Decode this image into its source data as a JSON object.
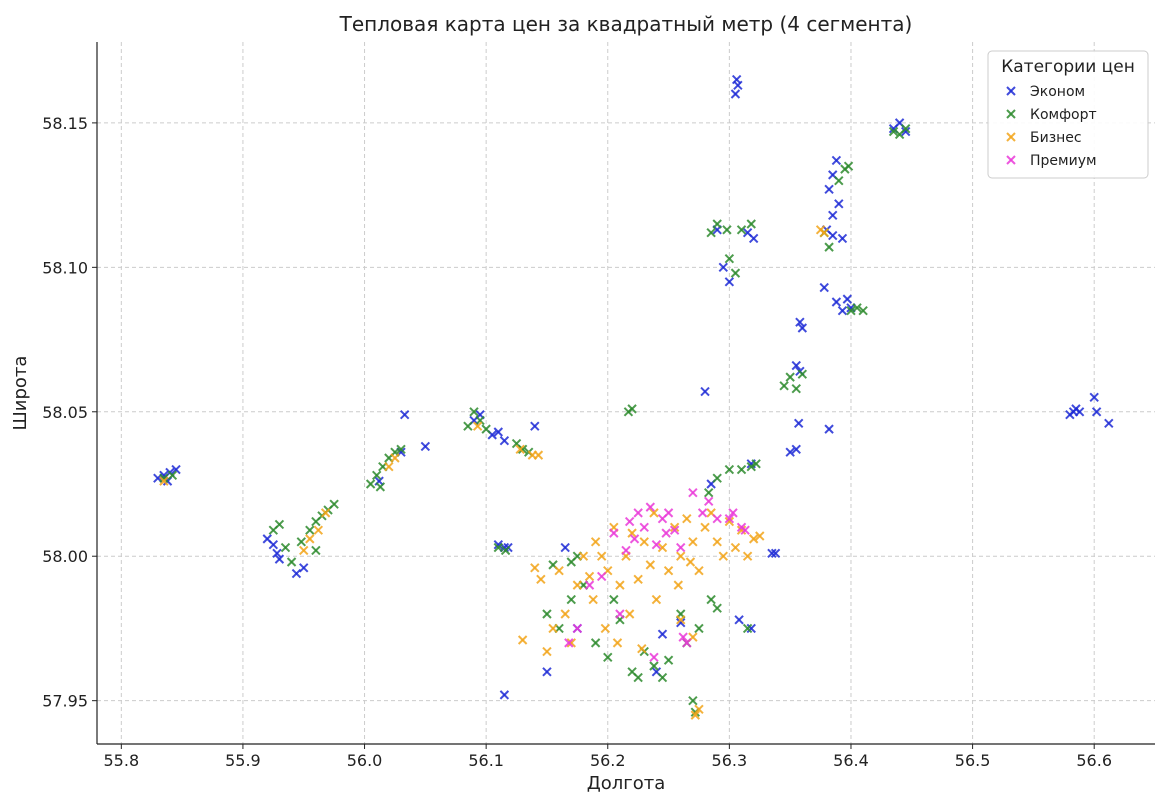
{
  "chart_data": {
    "type": "scatter",
    "title": "Тепловая карта цен за квадратный метр (4 сегмента)",
    "xlabel": "Долгота",
    "ylabel": "Широта",
    "xlim": [
      55.78,
      56.65
    ],
    "ylim": [
      57.935,
      58.178
    ],
    "xticks": [
      "55.8",
      "55.9",
      "56.0",
      "56.1",
      "56.2",
      "56.3",
      "56.4",
      "56.5",
      "56.6"
    ],
    "yticks": [
      "57.95",
      "58.00",
      "58.05",
      "58.10",
      "58.15"
    ],
    "grid": true,
    "marker": "x",
    "legend": {
      "title": "Категории цен",
      "position": "top-right"
    },
    "series": [
      {
        "name": "Эконом",
        "color": "#1f2bd6",
        "points": [
          [
            55.83,
            58.027
          ],
          [
            55.835,
            58.028
          ],
          [
            55.84,
            58.029
          ],
          [
            55.845,
            58.03
          ],
          [
            55.838,
            58.026
          ],
          [
            55.92,
            58.006
          ],
          [
            55.925,
            58.004
          ],
          [
            55.928,
            58.001
          ],
          [
            55.93,
            57.999
          ],
          [
            55.944,
            57.994
          ],
          [
            55.95,
            57.996
          ],
          [
            56.012,
            58.026
          ],
          [
            56.03,
            58.036
          ],
          [
            56.033,
            58.049
          ],
          [
            56.05,
            58.038
          ],
          [
            56.09,
            58.047
          ],
          [
            56.095,
            58.049
          ],
          [
            56.105,
            58.042
          ],
          [
            56.11,
            58.043
          ],
          [
            56.115,
            58.04
          ],
          [
            56.14,
            58.045
          ],
          [
            56.11,
            58.004
          ],
          [
            56.115,
            58.003
          ],
          [
            56.118,
            58.003
          ],
          [
            56.115,
            57.952
          ],
          [
            56.15,
            57.96
          ],
          [
            56.165,
            58.003
          ],
          [
            56.175,
            57.975
          ],
          [
            56.24,
            57.96
          ],
          [
            56.245,
            57.973
          ],
          [
            56.26,
            57.977
          ],
          [
            56.28,
            58.057
          ],
          [
            56.285,
            58.025
          ],
          [
            56.305,
            58.16
          ],
          [
            56.307,
            58.163
          ],
          [
            56.306,
            58.165
          ],
          [
            56.29,
            58.113
          ],
          [
            56.295,
            58.1
          ],
          [
            56.3,
            58.095
          ],
          [
            56.315,
            58.112
          ],
          [
            56.32,
            58.11
          ],
          [
            56.318,
            58.032
          ],
          [
            56.308,
            57.978
          ],
          [
            56.318,
            57.975
          ],
          [
            56.335,
            58.001
          ],
          [
            56.338,
            58.001
          ],
          [
            56.35,
            58.036
          ],
          [
            56.355,
            58.037
          ],
          [
            56.357,
            58.046
          ],
          [
            56.355,
            58.066
          ],
          [
            56.358,
            58.064
          ],
          [
            56.358,
            58.081
          ],
          [
            56.36,
            58.079
          ],
          [
            56.378,
            58.093
          ],
          [
            56.382,
            58.044
          ],
          [
            56.38,
            58.113
          ],
          [
            56.385,
            58.111
          ],
          [
            56.382,
            58.127
          ],
          [
            56.385,
            58.132
          ],
          [
            56.388,
            58.137
          ],
          [
            56.39,
            58.122
          ],
          [
            56.385,
            58.118
          ],
          [
            56.393,
            58.11
          ],
          [
            56.388,
            58.088
          ],
          [
            56.393,
            58.085
          ],
          [
            56.397,
            58.089
          ],
          [
            56.4,
            58.086
          ],
          [
            56.435,
            58.148
          ],
          [
            56.44,
            58.15
          ],
          [
            56.445,
            58.147
          ],
          [
            56.58,
            58.049
          ],
          [
            56.583,
            58.05
          ],
          [
            56.585,
            58.051
          ],
          [
            56.588,
            58.05
          ],
          [
            56.6,
            58.055
          ],
          [
            56.602,
            58.05
          ],
          [
            56.612,
            58.046
          ]
        ]
      },
      {
        "name": "Комфорт",
        "color": "#2e8b2e",
        "points": [
          [
            55.835,
            58.027
          ],
          [
            55.842,
            58.028
          ],
          [
            55.925,
            58.009
          ],
          [
            55.93,
            58.011
          ],
          [
            55.935,
            58.003
          ],
          [
            55.94,
            57.998
          ],
          [
            55.948,
            58.005
          ],
          [
            55.955,
            58.009
          ],
          [
            55.96,
            58.012
          ],
          [
            55.965,
            58.014
          ],
          [
            55.97,
            58.016
          ],
          [
            55.975,
            58.018
          ],
          [
            55.96,
            58.002
          ],
          [
            56.005,
            58.025
          ],
          [
            56.01,
            58.028
          ],
          [
            56.015,
            58.031
          ],
          [
            56.02,
            58.034
          ],
          [
            56.025,
            58.036
          ],
          [
            56.03,
            58.037
          ],
          [
            56.013,
            58.024
          ],
          [
            56.085,
            58.045
          ],
          [
            56.09,
            58.05
          ],
          [
            56.095,
            58.047
          ],
          [
            56.1,
            58.044
          ],
          [
            56.125,
            58.039
          ],
          [
            56.13,
            58.037
          ],
          [
            56.135,
            58.036
          ],
          [
            56.11,
            58.003
          ],
          [
            56.116,
            58.002
          ],
          [
            56.217,
            58.05
          ],
          [
            56.22,
            58.051
          ],
          [
            56.15,
            57.98
          ],
          [
            56.16,
            57.975
          ],
          [
            56.17,
            57.985
          ],
          [
            56.18,
            57.99
          ],
          [
            56.19,
            57.97
          ],
          [
            56.2,
            57.965
          ],
          [
            56.205,
            57.985
          ],
          [
            56.21,
            57.978
          ],
          [
            56.22,
            57.96
          ],
          [
            56.225,
            57.958
          ],
          [
            56.23,
            57.967
          ],
          [
            56.238,
            57.962
          ],
          [
            56.245,
            57.958
          ],
          [
            56.25,
            57.964
          ],
          [
            56.26,
            57.98
          ],
          [
            56.265,
            57.97
          ],
          [
            56.27,
            57.95
          ],
          [
            56.272,
            57.946
          ],
          [
            56.275,
            57.975
          ],
          [
            56.285,
            57.985
          ],
          [
            56.29,
            57.982
          ],
          [
            56.283,
            58.022
          ],
          [
            56.29,
            58.027
          ],
          [
            56.3,
            58.03
          ],
          [
            56.31,
            58.03
          ],
          [
            56.318,
            58.031
          ],
          [
            56.322,
            58.032
          ],
          [
            56.315,
            57.975
          ],
          [
            56.155,
            57.997
          ],
          [
            56.17,
            57.998
          ],
          [
            56.175,
            58.0
          ],
          [
            56.285,
            58.112
          ],
          [
            56.29,
            58.115
          ],
          [
            56.298,
            58.113
          ],
          [
            56.3,
            58.103
          ],
          [
            56.305,
            58.098
          ],
          [
            56.31,
            58.113
          ],
          [
            56.318,
            58.115
          ],
          [
            56.345,
            58.059
          ],
          [
            56.35,
            58.062
          ],
          [
            56.355,
            58.058
          ],
          [
            56.36,
            58.063
          ],
          [
            56.378,
            58.112
          ],
          [
            56.382,
            58.107
          ],
          [
            56.39,
            58.13
          ],
          [
            56.395,
            58.134
          ],
          [
            56.398,
            58.135
          ],
          [
            56.4,
            58.085
          ],
          [
            56.405,
            58.086
          ],
          [
            56.41,
            58.085
          ],
          [
            56.435,
            58.147
          ],
          [
            56.44,
            58.146
          ],
          [
            56.445,
            58.148
          ]
        ]
      },
      {
        "name": "Бизнес",
        "color": "#f2a51a",
        "points": [
          [
            55.835,
            58.026
          ],
          [
            55.95,
            58.002
          ],
          [
            55.955,
            58.006
          ],
          [
            55.962,
            58.009
          ],
          [
            55.968,
            58.015
          ],
          [
            56.02,
            58.031
          ],
          [
            56.025,
            58.034
          ],
          [
            56.093,
            58.045
          ],
          [
            56.128,
            58.037
          ],
          [
            56.138,
            58.035
          ],
          [
            56.143,
            58.035
          ],
          [
            56.13,
            57.971
          ],
          [
            56.14,
            57.996
          ],
          [
            56.145,
            57.992
          ],
          [
            56.15,
            57.967
          ],
          [
            56.155,
            57.975
          ],
          [
            56.16,
            57.995
          ],
          [
            56.165,
            57.98
          ],
          [
            56.17,
            57.97
          ],
          [
            56.175,
            57.99
          ],
          [
            56.18,
            58.0
          ],
          [
            56.185,
            57.993
          ],
          [
            56.188,
            57.985
          ],
          [
            56.19,
            58.005
          ],
          [
            56.195,
            58.0
          ],
          [
            56.198,
            57.975
          ],
          [
            56.2,
            57.995
          ],
          [
            56.205,
            58.01
          ],
          [
            56.208,
            57.97
          ],
          [
            56.21,
            57.99
          ],
          [
            56.215,
            58.0
          ],
          [
            56.218,
            57.98
          ],
          [
            56.22,
            58.008
          ],
          [
            56.225,
            57.992
          ],
          [
            56.228,
            57.968
          ],
          [
            56.23,
            58.005
          ],
          [
            56.235,
            57.997
          ],
          [
            56.238,
            58.015
          ],
          [
            56.24,
            57.985
          ],
          [
            56.245,
            58.003
          ],
          [
            56.25,
            57.995
          ],
          [
            56.255,
            58.01
          ],
          [
            56.258,
            57.99
          ],
          [
            56.26,
            58.0
          ],
          [
            56.265,
            58.013
          ],
          [
            56.268,
            57.998
          ],
          [
            56.27,
            58.005
          ],
          [
            56.275,
            57.995
          ],
          [
            56.28,
            58.01
          ],
          [
            56.285,
            58.015
          ],
          [
            56.29,
            58.005
          ],
          [
            56.295,
            58.0
          ],
          [
            56.3,
            58.012
          ],
          [
            56.305,
            58.003
          ],
          [
            56.31,
            58.009
          ],
          [
            56.315,
            58.0
          ],
          [
            56.32,
            58.006
          ],
          [
            56.325,
            58.007
          ],
          [
            56.26,
            57.978
          ],
          [
            56.27,
            57.972
          ],
          [
            56.272,
            57.945
          ],
          [
            56.275,
            57.947
          ],
          [
            56.375,
            58.113
          ],
          [
            56.378,
            58.112
          ]
        ]
      },
      {
        "name": "Премиум",
        "color": "#ea3ad8",
        "points": [
          [
            56.168,
            57.97
          ],
          [
            56.175,
            57.975
          ],
          [
            56.185,
            57.99
          ],
          [
            56.195,
            57.993
          ],
          [
            56.205,
            58.008
          ],
          [
            56.21,
            57.98
          ],
          [
            56.215,
            58.002
          ],
          [
            56.218,
            58.012
          ],
          [
            56.222,
            58.006
          ],
          [
            56.225,
            58.015
          ],
          [
            56.23,
            58.01
          ],
          [
            56.235,
            58.017
          ],
          [
            56.238,
            57.965
          ],
          [
            56.24,
            58.004
          ],
          [
            56.245,
            58.013
          ],
          [
            56.248,
            58.008
          ],
          [
            56.25,
            58.015
          ],
          [
            56.255,
            58.009
          ],
          [
            56.26,
            58.003
          ],
          [
            56.262,
            57.972
          ],
          [
            56.265,
            57.97
          ],
          [
            56.27,
            58.022
          ],
          [
            56.278,
            58.015
          ],
          [
            56.283,
            58.019
          ],
          [
            56.29,
            58.013
          ],
          [
            56.3,
            58.013
          ],
          [
            56.303,
            58.015
          ],
          [
            56.31,
            58.01
          ],
          [
            56.313,
            58.009
          ]
        ]
      }
    ]
  }
}
